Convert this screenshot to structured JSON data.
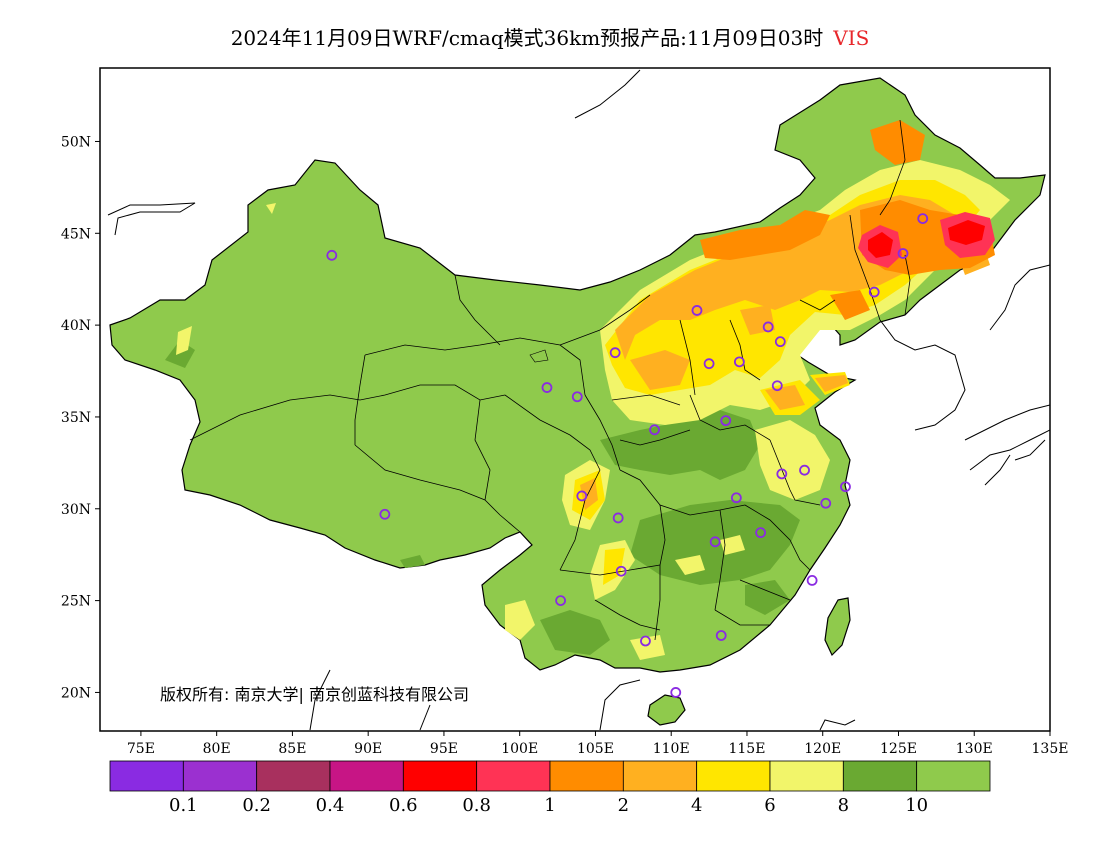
{
  "title": {
    "main": "2024年11月09日WRF/cmaq模式36km预报产品:11月09日03时",
    "variable": "VIS"
  },
  "copyright": "版权所有: 南京大学| 南京创蓝科技有限公司",
  "axes": {
    "x_ticks": [
      "75E",
      "80E",
      "85E",
      "90E",
      "95E",
      "100E",
      "105E",
      "110E",
      "115E",
      "120E",
      "125E",
      "130E",
      "135E"
    ],
    "y_ticks": [
      "50N",
      "45N",
      "40N",
      "35N",
      "30N",
      "25N",
      "20N"
    ]
  },
  "legend": {
    "colors": [
      "#8a2be2",
      "#9b30d0",
      "#a8305e",
      "#c71585",
      "#ff0000",
      "#ff3355",
      "#ff8c00",
      "#ffb020",
      "#ffe600",
      "#f2f56a",
      "#6aa932",
      "#8fca4c"
    ],
    "labels": [
      "0.1",
      "0.2",
      "0.4",
      "0.6",
      "0.8",
      "1",
      "2",
      "4",
      "6",
      "8",
      "10"
    ]
  },
  "palette": {
    "land_green": "#8fca4c",
    "dark_green": "#6aa932",
    "light_yellow": "#f2f56a",
    "yellow": "#ffe600",
    "orange_light": "#ffb020",
    "orange": "#ff8c00",
    "red": "#ff3355",
    "station": "#8a2be2"
  },
  "stations": [
    {
      "lon": 87.6,
      "lat": 43.8
    },
    {
      "lon": 91.1,
      "lat": 29.7
    },
    {
      "lon": 101.8,
      "lat": 36.6
    },
    {
      "lon": 103.8,
      "lat": 36.1
    },
    {
      "lon": 106.3,
      "lat": 38.5
    },
    {
      "lon": 111.7,
      "lat": 40.8
    },
    {
      "lon": 112.5,
      "lat": 37.9
    },
    {
      "lon": 114.5,
      "lat": 38.0
    },
    {
      "lon": 116.4,
      "lat": 39.9
    },
    {
      "lon": 117.2,
      "lat": 39.1
    },
    {
      "lon": 117.0,
      "lat": 36.7
    },
    {
      "lon": 113.6,
      "lat": 34.8
    },
    {
      "lon": 108.9,
      "lat": 34.3
    },
    {
      "lon": 104.1,
      "lat": 30.7
    },
    {
      "lon": 106.5,
      "lat": 29.5
    },
    {
      "lon": 114.3,
      "lat": 30.6
    },
    {
      "lon": 117.3,
      "lat": 31.9
    },
    {
      "lon": 118.8,
      "lat": 32.1
    },
    {
      "lon": 121.5,
      "lat": 31.2
    },
    {
      "lon": 120.2,
      "lat": 30.3
    },
    {
      "lon": 112.9,
      "lat": 28.2
    },
    {
      "lon": 115.9,
      "lat": 28.7
    },
    {
      "lon": 106.7,
      "lat": 26.6
    },
    {
      "lon": 102.7,
      "lat": 25.0
    },
    {
      "lon": 108.3,
      "lat": 22.8
    },
    {
      "lon": 113.3,
      "lat": 23.1
    },
    {
      "lon": 119.3,
      "lat": 26.1
    },
    {
      "lon": 110.3,
      "lat": 20.0
    },
    {
      "lon": 123.4,
      "lat": 41.8
    },
    {
      "lon": 125.3,
      "lat": 43.9
    },
    {
      "lon": 126.6,
      "lat": 45.8
    }
  ]
}
